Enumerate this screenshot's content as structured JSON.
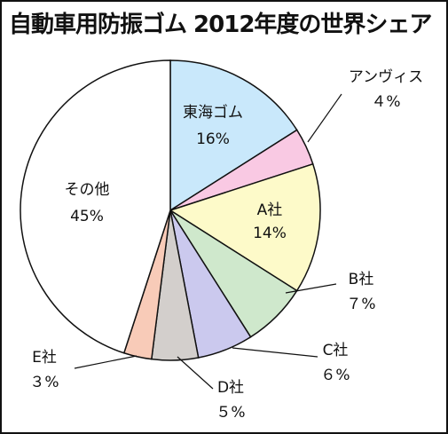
{
  "title": "自動車用防振ゴム 2012年度の世界シェア",
  "chart_data": {
    "type": "pie",
    "title": "自動車用防振ゴム 2012年度の世界シェア",
    "slices": [
      {
        "name": "東海ゴム",
        "value": 16,
        "label": "16%",
        "color": "#c9e8fb"
      },
      {
        "name": "アンヴィス",
        "value": 4,
        "label": "４%",
        "color": "#f9c9e3"
      },
      {
        "name": "A社",
        "value": 14,
        "label": "14%",
        "color": "#fdfac9"
      },
      {
        "name": "B社",
        "value": 7,
        "label": "７%",
        "color": "#cfe8cc"
      },
      {
        "name": "C社",
        "value": 6,
        "label": "６%",
        "color": "#cbc9ee"
      },
      {
        "name": "D社",
        "value": 5,
        "label": "５%",
        "color": "#d3cfcc"
      },
      {
        "name": "E社",
        "value": 3,
        "label": "３%",
        "color": "#f8cbb8"
      },
      {
        "name": "その他",
        "value": 45,
        "label": "45%",
        "color": "#ffffff"
      }
    ]
  }
}
